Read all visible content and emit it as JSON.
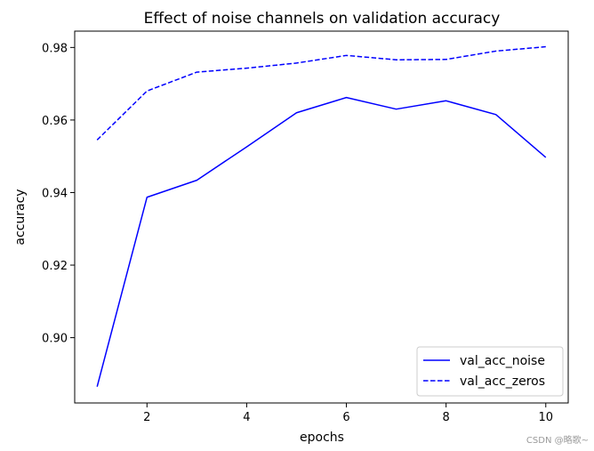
{
  "chart_data": {
    "type": "line",
    "title": "Effect of noise channels on validation accuracy",
    "xlabel": "epochs",
    "ylabel": "accuracy",
    "x": [
      1,
      2,
      3,
      4,
      5,
      6,
      7,
      8,
      9,
      10
    ],
    "xlim": [
      0.55,
      10.45
    ],
    "ylim": [
      0.882,
      0.9845
    ],
    "xticks": [
      2,
      4,
      6,
      8,
      10
    ],
    "yticks": [
      0.9,
      0.92,
      0.94,
      0.96,
      0.98
    ],
    "ytick_labels": [
      "0.90",
      "0.92",
      "0.94",
      "0.96",
      "0.98"
    ],
    "grid": false,
    "legend_position": "lower right",
    "series": [
      {
        "name": "val_acc_noise",
        "style": "solid",
        "color": "#0000ff",
        "values": [
          0.8865,
          0.9387,
          0.9434,
          0.9526,
          0.962,
          0.9662,
          0.963,
          0.9653,
          0.9615,
          0.9497
        ]
      },
      {
        "name": "val_acc_zeros",
        "style": "dashed",
        "color": "#0000ff",
        "values": [
          0.9545,
          0.968,
          0.9732,
          0.9743,
          0.9757,
          0.9778,
          0.9766,
          0.9767,
          0.979,
          0.9802
        ]
      }
    ]
  },
  "watermark": "CSDN @略歌~"
}
